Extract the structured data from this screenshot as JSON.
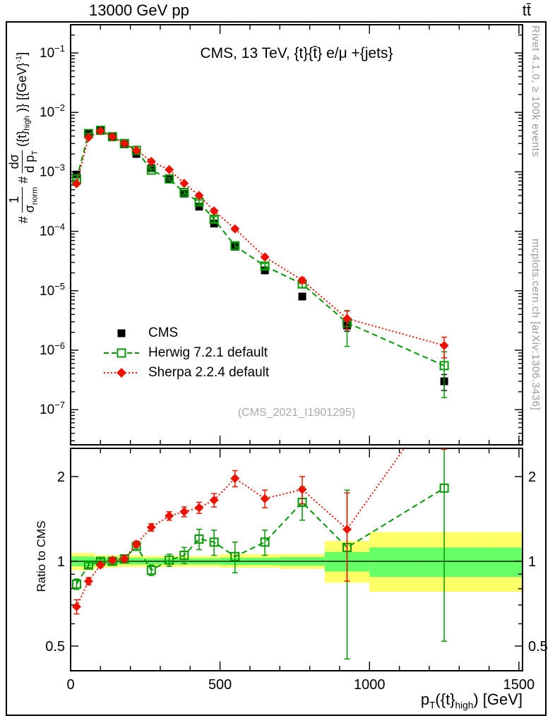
{
  "header": {
    "beam": "13000 GeV pp",
    "process": "tt̄"
  },
  "plot": {
    "title": "CMS, 13 TeV, {t}{t̄} e/μ +{jets}",
    "watermark": "(CMS_2021_I1901295)",
    "rivet_note": "Rivet 4.1.0, ≥ 100k events",
    "mcplots_note": "mcplots.cern.ch [arXiv:1306.3436]"
  },
  "axis_labels": {
    "y": {
      "hash1": "#",
      "f1num": "1",
      "f1den": "σ",
      "f1densub": "norm",
      "hash2": "#",
      "f2num": "dσ",
      "f2den": "d p",
      "f2densub": "T",
      "tail1": "({t}",
      "tailsub": "high",
      "tail2": " )} [{GeV}",
      "tailsup": "-1",
      "tail3": "]"
    },
    "ratio_y": "Ratio to CMS",
    "x": {
      "base": "p",
      "sub": "T",
      "mid": "({t}",
      "sub2": "high",
      "end": ") [GeV]"
    }
  },
  "legend": [
    {
      "label": "CMS",
      "marker": "square-filled",
      "color": "#000000",
      "line": "none"
    },
    {
      "label": "Herwig 7.2.1 default",
      "marker": "square-open",
      "color": "#009900",
      "line": "dashed"
    },
    {
      "label": "Sherpa 2.2.4 default",
      "marker": "diamond-filled",
      "color": "#ee1100",
      "line": "dotted"
    }
  ],
  "chart_data": {
    "type": "line",
    "title": "CMS, 13 TeV, {t}{t̄} e/μ +{jets}",
    "xlabel": "p_T({t}_high) [GeV]",
    "ylabel": "1/σ_norm dσ/d p_T({t}_high) [GeV^-1]",
    "ratio_ylabel": "Ratio to CMS",
    "xlim": [
      0,
      1512
    ],
    "xticks": {
      "major": [
        0,
        500,
        1000,
        1500
      ],
      "minor_step": 100
    },
    "x": [
      20,
      60,
      100,
      140,
      180,
      220,
      270,
      330,
      380,
      430,
      480,
      550,
      650,
      775,
      925,
      1250
    ],
    "main_panel": {
      "yscale": "log",
      "ylim": [
        2.6e-08,
        0.3
      ],
      "ytick_exponents": [
        -1,
        -2,
        -3,
        -4,
        -5,
        -6,
        -7
      ],
      "series": [
        {
          "name": "CMS",
          "color": "#000000",
          "marker": "square-filled",
          "line": "none",
          "y": [
            0.0009,
            0.0045,
            0.005,
            0.0039,
            0.0029,
            0.002,
            0.00115,
            0.00075,
            0.00043,
            0.00026,
            0.000135,
            5.5e-05,
            2.2e-05,
            8e-06,
            2.6e-06,
            3e-07
          ],
          "yerr_rel": [
            0.05,
            0.025,
            0.02,
            0.02,
            0.02,
            0.025,
            0.03,
            0.03,
            0.035,
            0.04,
            0.05,
            0.06,
            0.08,
            0.12,
            0.2,
            0.3
          ]
        },
        {
          "name": "Herwig 7.2.1 default",
          "color": "#009900",
          "marker": "square-open",
          "line": "dashed",
          "y": [
            0.00076,
            0.0044,
            0.005,
            0.0039,
            0.003,
            0.0023,
            0.00107,
            0.00076,
            0.00045,
            0.00031,
            0.00016,
            5.7e-05,
            2.6e-05,
            1.3e-05,
            2.9e-06,
            5.5e-07
          ],
          "yerr_rel": [
            0.04,
            0.02,
            0.02,
            0.02,
            0.025,
            0.027,
            0.043,
            0.05,
            0.067,
            0.083,
            0.1,
            0.125,
            0.1,
            0.13,
            0.6,
            0.71
          ]
        },
        {
          "name": "Sherpa 2.2.4 default",
          "color": "#ee1100",
          "marker": "diamond-filled",
          "line": "dotted",
          "y": [
            0.00063,
            0.0038,
            0.0049,
            0.0039,
            0.003,
            0.0023,
            0.0015,
            0.00109,
            0.00064,
            0.0004,
            0.00022,
            0.00011,
            3.7e-05,
            1.5e-05,
            3.4e-06,
            1.2e-06
          ],
          "yerr_rel": [
            0.057,
            0.03,
            0.02,
            0.02,
            0.025,
            0.026,
            0.03,
            0.034,
            0.04,
            0.045,
            0.055,
            0.066,
            0.072,
            0.11,
            0.34,
            0.38
          ]
        }
      ]
    },
    "ratio_panel": {
      "yscale": "log",
      "ylim": [
        0.41,
        2.52
      ],
      "ref_line": 1.0,
      "yticks": [
        0.5,
        1,
        2
      ],
      "yticks_minor": [
        0.6,
        0.7,
        0.8,
        0.9
      ],
      "series": [
        {
          "name": "Herwig 7.2.1 default",
          "color": "#009900",
          "marker": "square-open",
          "line": "dashed",
          "ratio": [
            0.83,
            0.97,
            1.0,
            1.0,
            1.02,
            1.13,
            0.93,
            1.01,
            1.05,
            1.2,
            1.17,
            1.04,
            1.17,
            1.62,
            1.12,
            1.82
          ],
          "err": [
            0.035,
            0.02,
            0.02,
            0.02,
            0.025,
            0.03,
            0.04,
            0.05,
            0.07,
            0.1,
            0.12,
            0.13,
            0.12,
            0.22,
            0.67,
            1.3
          ]
        },
        {
          "name": "Sherpa 2.2.4 default",
          "color": "#ee1100",
          "marker": "diamond-filled",
          "line": "dotted",
          "ratio": [
            0.69,
            0.85,
            0.97,
            1.01,
            1.02,
            1.15,
            1.32,
            1.45,
            1.5,
            1.55,
            1.65,
            1.97,
            1.67,
            1.8,
            1.3,
            4.0
          ],
          "err": [
            0.04,
            0.025,
            0.02,
            0.02,
            0.025,
            0.03,
            0.04,
            0.05,
            0.06,
            0.07,
            0.09,
            0.13,
            0.12,
            0.2,
            0.45,
            1.5
          ]
        }
      ],
      "band_colors": {
        "yellow": "#ffff66",
        "green": "#66ff66"
      },
      "bands": [
        {
          "x0": 0,
          "x1": 80,
          "yellow": [
            0.93,
            1.07
          ],
          "green": [
            0.96,
            1.04
          ]
        },
        {
          "x0": 80,
          "x1": 160,
          "yellow": [
            0.95,
            1.05
          ],
          "green": [
            0.97,
            1.03
          ]
        },
        {
          "x0": 160,
          "x1": 240,
          "yellow": [
            0.955,
            1.05
          ],
          "green": [
            0.975,
            1.03
          ]
        },
        {
          "x0": 240,
          "x1": 500,
          "yellow": [
            0.955,
            1.045
          ],
          "green": [
            0.975,
            1.025
          ]
        },
        {
          "x0": 500,
          "x1": 700,
          "yellow": [
            0.95,
            1.06
          ],
          "green": [
            0.97,
            1.03
          ]
        },
        {
          "x0": 700,
          "x1": 850,
          "yellow": [
            0.94,
            1.06
          ],
          "green": [
            0.965,
            1.035
          ]
        },
        {
          "x0": 850,
          "x1": 1000,
          "yellow": [
            0.84,
            1.18
          ],
          "green": [
            0.92,
            1.08
          ]
        },
        {
          "x0": 1000,
          "x1": 1512,
          "yellow": [
            0.78,
            1.27
          ],
          "green": [
            0.88,
            1.12
          ]
        }
      ]
    }
  }
}
